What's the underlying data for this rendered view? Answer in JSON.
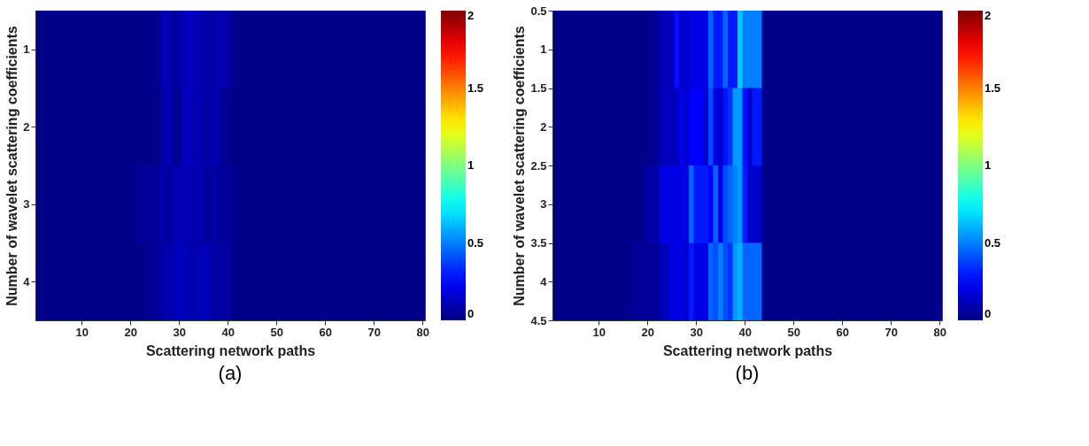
{
  "chart_data": [
    {
      "type": "heatmap",
      "xlabel": "Scattering network paths",
      "ylabel": "Number of wavelet scattering coefficients",
      "annotations": [
        "(a)"
      ],
      "xlim": [
        0.5,
        80.5
      ],
      "xticks": [
        10,
        20,
        30,
        40,
        50,
        60,
        70,
        80
      ],
      "ylim": [
        4.5,
        0.5
      ],
      "yticks": [
        1,
        2,
        3,
        4
      ],
      "clim": [
        0,
        2
      ],
      "cticks": [
        0,
        0.5,
        1,
        1.5,
        2
      ],
      "grid": false,
      "cells": [
        [
          0.02,
          0.02,
          0.02,
          0.02,
          0.02,
          0.02,
          0.02,
          0.02,
          0.02,
          0.02,
          0.02,
          0.02,
          0.02,
          0.02,
          0.02,
          0.02,
          0.02,
          0.02,
          0.02,
          0.02,
          0.02,
          0.02,
          0.02,
          0.02,
          0.02,
          0.05,
          0.12,
          0.1,
          0.05,
          0.08,
          0.1,
          0.13,
          0.12,
          0.1,
          0.08,
          0.08,
          0.07,
          0.09,
          0.1,
          0.08,
          0.03,
          0.02,
          0.02,
          0.02,
          0.02,
          0.02,
          0.02,
          0.02,
          0.02,
          0.02,
          0.02,
          0.02,
          0.02,
          0.02,
          0.02,
          0.02,
          0.02,
          0.02,
          0.02,
          0.02,
          0.02,
          0.02,
          0.02,
          0.02,
          0.02,
          0.02,
          0.02,
          0.02,
          0.02,
          0.02,
          0.02,
          0.02,
          0.02,
          0.02,
          0.02,
          0.02,
          0.02,
          0.02,
          0.02,
          0.02
        ],
        [
          0.02,
          0.02,
          0.02,
          0.02,
          0.02,
          0.02,
          0.02,
          0.02,
          0.02,
          0.02,
          0.02,
          0.02,
          0.02,
          0.02,
          0.02,
          0.02,
          0.02,
          0.02,
          0.02,
          0.02,
          0.02,
          0.02,
          0.02,
          0.02,
          0.02,
          0.03,
          0.1,
          0.1,
          0.05,
          0.04,
          0.12,
          0.14,
          0.1,
          0.1,
          0.08,
          0.07,
          0.09,
          0.08,
          0.05,
          0.03,
          0.02,
          0.02,
          0.02,
          0.02,
          0.02,
          0.02,
          0.02,
          0.02,
          0.02,
          0.02,
          0.02,
          0.02,
          0.02,
          0.02,
          0.02,
          0.02,
          0.02,
          0.02,
          0.02,
          0.02,
          0.02,
          0.02,
          0.02,
          0.02,
          0.02,
          0.02,
          0.02,
          0.02,
          0.02,
          0.02,
          0.02,
          0.02,
          0.02,
          0.02,
          0.02,
          0.02,
          0.02,
          0.02,
          0.02,
          0.02
        ],
        [
          0.02,
          0.02,
          0.02,
          0.02,
          0.02,
          0.02,
          0.02,
          0.02,
          0.02,
          0.02,
          0.02,
          0.02,
          0.02,
          0.02,
          0.02,
          0.02,
          0.02,
          0.02,
          0.02,
          0.02,
          0.03,
          0.05,
          0.05,
          0.05,
          0.05,
          0.07,
          0.07,
          0.05,
          0.1,
          0.1,
          0.1,
          0.11,
          0.1,
          0.09,
          0.08,
          0.05,
          0.08,
          0.05,
          0.05,
          0.05,
          0.03,
          0.02,
          0.02,
          0.02,
          0.02,
          0.02,
          0.02,
          0.02,
          0.02,
          0.02,
          0.02,
          0.02,
          0.02,
          0.02,
          0.02,
          0.02,
          0.02,
          0.02,
          0.02,
          0.02,
          0.02,
          0.02,
          0.02,
          0.02,
          0.02,
          0.02,
          0.02,
          0.02,
          0.02,
          0.02,
          0.02,
          0.02,
          0.02,
          0.02,
          0.02,
          0.02,
          0.02,
          0.02,
          0.02,
          0.02
        ],
        [
          0.02,
          0.02,
          0.02,
          0.02,
          0.02,
          0.02,
          0.02,
          0.02,
          0.02,
          0.02,
          0.02,
          0.02,
          0.02,
          0.02,
          0.02,
          0.02,
          0.02,
          0.02,
          0.02,
          0.02,
          0.02,
          0.02,
          0.02,
          0.05,
          0.05,
          0.05,
          0.1,
          0.08,
          0.12,
          0.12,
          0.11,
          0.1,
          0.08,
          0.11,
          0.11,
          0.1,
          0.07,
          0.07,
          0.07,
          0.07,
          0.03,
          0.02,
          0.02,
          0.02,
          0.02,
          0.02,
          0.02,
          0.02,
          0.02,
          0.02,
          0.02,
          0.02,
          0.02,
          0.02,
          0.02,
          0.02,
          0.02,
          0.02,
          0.02,
          0.02,
          0.02,
          0.02,
          0.02,
          0.02,
          0.02,
          0.02,
          0.02,
          0.02,
          0.02,
          0.02,
          0.02,
          0.02,
          0.02,
          0.02,
          0.02,
          0.02,
          0.02,
          0.02,
          0.02,
          0.02
        ]
      ]
    },
    {
      "type": "heatmap",
      "xlabel": "Scattering network paths",
      "ylabel": "Number of wavelet scattering coefficients",
      "annotations": [
        "(b)"
      ],
      "xlim": [
        0.5,
        80.5
      ],
      "xticks": [
        10,
        20,
        30,
        40,
        50,
        60,
        70,
        80
      ],
      "ylim": [
        4.5,
        0.5
      ],
      "yticks": [
        0.5,
        1,
        1.5,
        2,
        2.5,
        3,
        3.5,
        4,
        4.5
      ],
      "clim": [
        0,
        2
      ],
      "cticks": [
        0,
        0.5,
        1,
        1.5,
        2
      ],
      "grid": false,
      "cells": [
        [
          0.02,
          0.02,
          0.02,
          0.02,
          0.02,
          0.02,
          0.02,
          0.02,
          0.02,
          0.02,
          0.02,
          0.02,
          0.02,
          0.02,
          0.02,
          0.02,
          0.02,
          0.02,
          0.02,
          0.02,
          0.04,
          0.05,
          0.12,
          0.12,
          0.12,
          0.28,
          0.15,
          0.15,
          0.2,
          0.2,
          0.2,
          0.2,
          0.45,
          0.3,
          0.3,
          0.45,
          0.3,
          0.3,
          0.65,
          0.5,
          0.5,
          0.5,
          0.5,
          0.02,
          0.02,
          0.02,
          0.02,
          0.02,
          0.02,
          0.02,
          0.02,
          0.02,
          0.02,
          0.02,
          0.02,
          0.02,
          0.02,
          0.02,
          0.02,
          0.02,
          0.02,
          0.02,
          0.02,
          0.02,
          0.02,
          0.02,
          0.02,
          0.02,
          0.02,
          0.02,
          0.02,
          0.02,
          0.02,
          0.02,
          0.02,
          0.02,
          0.02,
          0.02,
          0.02,
          0.02
        ],
        [
          0.02,
          0.02,
          0.02,
          0.02,
          0.02,
          0.02,
          0.02,
          0.02,
          0.02,
          0.02,
          0.02,
          0.02,
          0.02,
          0.02,
          0.02,
          0.02,
          0.02,
          0.02,
          0.02,
          0.02,
          0.04,
          0.05,
          0.12,
          0.12,
          0.12,
          0.12,
          0.22,
          0.15,
          0.25,
          0.25,
          0.25,
          0.15,
          0.4,
          0.2,
          0.15,
          0.28,
          0.35,
          0.55,
          0.55,
          0.28,
          0.15,
          0.3,
          0.3,
          0.02,
          0.02,
          0.02,
          0.02,
          0.02,
          0.02,
          0.02,
          0.02,
          0.02,
          0.02,
          0.02,
          0.02,
          0.02,
          0.02,
          0.02,
          0.02,
          0.02,
          0.02,
          0.02,
          0.02,
          0.02,
          0.02,
          0.02,
          0.02,
          0.02,
          0.02,
          0.02,
          0.02,
          0.02,
          0.02,
          0.02,
          0.02,
          0.02,
          0.02,
          0.02,
          0.02,
          0.02
        ],
        [
          0.02,
          0.02,
          0.02,
          0.02,
          0.02,
          0.02,
          0.02,
          0.02,
          0.02,
          0.02,
          0.02,
          0.02,
          0.02,
          0.02,
          0.02,
          0.02,
          0.02,
          0.02,
          0.02,
          0.08,
          0.08,
          0.08,
          0.2,
          0.2,
          0.2,
          0.2,
          0.2,
          0.2,
          0.45,
          0.3,
          0.3,
          0.3,
          0.25,
          0.45,
          0.2,
          0.4,
          0.45,
          0.5,
          0.55,
          0.3,
          0.15,
          0.15,
          0.15,
          0.02,
          0.02,
          0.02,
          0.02,
          0.02,
          0.02,
          0.02,
          0.02,
          0.02,
          0.02,
          0.02,
          0.02,
          0.02,
          0.02,
          0.02,
          0.02,
          0.02,
          0.02,
          0.02,
          0.02,
          0.02,
          0.02,
          0.02,
          0.02,
          0.02,
          0.02,
          0.02,
          0.02,
          0.02,
          0.02,
          0.02,
          0.02,
          0.02,
          0.02,
          0.02,
          0.02,
          0.02
        ],
        [
          0.02,
          0.02,
          0.02,
          0.02,
          0.02,
          0.02,
          0.02,
          0.02,
          0.02,
          0.02,
          0.02,
          0.02,
          0.02,
          0.02,
          0.02,
          0.02,
          0.05,
          0.05,
          0.05,
          0.05,
          0.05,
          0.05,
          0.12,
          0.12,
          0.2,
          0.2,
          0.2,
          0.15,
          0.3,
          0.2,
          0.2,
          0.2,
          0.45,
          0.4,
          0.5,
          0.4,
          0.35,
          0.55,
          0.6,
          0.45,
          0.45,
          0.45,
          0.45,
          0.02,
          0.02,
          0.02,
          0.02,
          0.02,
          0.02,
          0.02,
          0.02,
          0.02,
          0.02,
          0.02,
          0.02,
          0.02,
          0.02,
          0.02,
          0.02,
          0.02,
          0.02,
          0.02,
          0.02,
          0.02,
          0.02,
          0.02,
          0.02,
          0.02,
          0.02,
          0.02,
          0.02,
          0.02,
          0.02,
          0.02,
          0.02,
          0.02,
          0.02,
          0.02,
          0.02,
          0.02
        ]
      ]
    }
  ]
}
